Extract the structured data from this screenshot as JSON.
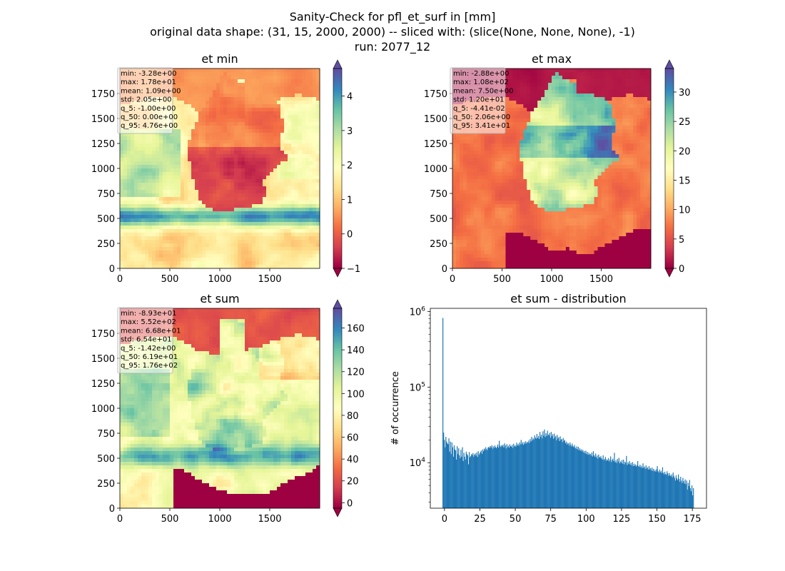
{
  "figure": {
    "title_lines": [
      "Sanity-Check for pfl_et_surf in [mm]",
      "original data shape: (31, 15, 2000, 2000) -- sliced with: (slice(None, None, None), -1)",
      "run: 2077_12"
    ]
  },
  "chart_data": [
    {
      "type": "heatmap",
      "title": "et min",
      "xlim": [
        0,
        2000
      ],
      "ylim": [
        0,
        2000
      ],
      "x_ticks": [
        0,
        500,
        1000,
        1500
      ],
      "y_ticks": [
        0,
        250,
        500,
        750,
        1000,
        1250,
        1500,
        1750
      ],
      "colorbar": {
        "colormap": "Spectral",
        "range": [
          -1,
          4.8
        ],
        "ticks": [
          -1,
          0,
          1,
          2,
          3,
          4
        ],
        "extend": "both"
      },
      "stats": [
        "min: -3.28e+00",
        "max: 1.78e+01",
        "mean: 1.09e+00",
        "std: 2.05e+00",
        "q_5: -1.00e+00",
        "q_50: 0.00e+00",
        "q_95: 4.76e+00"
      ]
    },
    {
      "type": "heatmap",
      "title": "et max",
      "xlim": [
        0,
        2000
      ],
      "ylim": [
        0,
        2000
      ],
      "x_ticks": [
        0,
        500,
        1000,
        1500
      ],
      "y_ticks": [
        0,
        250,
        500,
        750,
        1000,
        1250,
        1500,
        1750
      ],
      "colorbar": {
        "colormap": "Spectral",
        "range": [
          0,
          34
        ],
        "ticks": [
          0,
          5,
          10,
          15,
          20,
          25,
          30
        ],
        "extend": "both"
      },
      "stats": [
        "min: -2.88e+00",
        "max: 1.08e+02",
        "mean: 7.50e+00",
        "std: 1.20e+01",
        "q_5: -4.41e-02",
        "q_50: 2.06e+00",
        "q_95: 3.41e+01"
      ]
    },
    {
      "type": "heatmap",
      "title": "et sum",
      "xlim": [
        0,
        2000
      ],
      "ylim": [
        0,
        2000
      ],
      "x_ticks": [
        0,
        500,
        1000,
        1500
      ],
      "y_ticks": [
        0,
        250,
        500,
        750,
        1000,
        1250,
        1500,
        1750
      ],
      "colorbar": {
        "colormap": "Spectral",
        "range": [
          -5,
          178
        ],
        "ticks": [
          0,
          20,
          40,
          60,
          80,
          100,
          120,
          140,
          160
        ],
        "extend": "both"
      },
      "stats": [
        "min: -8.93e+01",
        "max: 5.52e+02",
        "mean: 6.68e+01",
        "std: 6.54e+01",
        "q_5: -1.42e+00",
        "q_50: 6.19e+01",
        "q_95: 1.76e+02"
      ]
    },
    {
      "type": "bar",
      "title": "et sum - distribution",
      "xlabel": "",
      "ylabel": "# of occurrence",
      "yscale": "log",
      "xlim": [
        -10,
        185
      ],
      "ylim": [
        2500,
        1100000
      ],
      "x_ticks": [
        0,
        25,
        50,
        75,
        100,
        125,
        150,
        175
      ],
      "y_ticks": [
        {
          "value": 10000,
          "base": "10",
          "exp": "4"
        },
        {
          "value": 100000,
          "base": "10",
          "exp": "5"
        },
        {
          "value": 1000000,
          "base": "10",
          "exp": "6"
        }
      ],
      "bar_color": "#1f77b4",
      "bin_range": [
        -1.42,
        176
      ],
      "values": [
        820000,
        25000,
        20000,
        16000,
        22000,
        19000,
        18000,
        17500,
        21000,
        14000,
        19000,
        13000,
        18500,
        16000,
        12000,
        17000,
        15000,
        14500,
        11000,
        16500,
        13000,
        15500,
        12500,
        11500,
        14800,
        12000,
        16000,
        10500,
        13500,
        12000,
        11000,
        14000,
        13000,
        12500,
        9500,
        13800,
        11800,
        12200,
        13000,
        12600,
        13400,
        12000,
        12800,
        13200,
        12400,
        13600,
        11900,
        14200,
        12700,
        13300,
        13900,
        14500,
        13100,
        15000,
        14200,
        15400,
        14800,
        16000,
        15200,
        14600,
        15800,
        16200,
        15600,
        16600,
        15900,
        17000,
        15300,
        16400,
        15700,
        16900,
        16100,
        15500,
        16300,
        17400,
        15800,
        19500,
        16700,
        16100,
        17100,
        16500,
        17300,
        15900,
        18000,
        16900,
        15400,
        17600,
        16000,
        16800,
        15800,
        17500,
        16600,
        16200,
        17200,
        15700,
        17800,
        16400,
        17000,
        16300,
        18400,
        16900,
        17700,
        16800,
        18500,
        17400,
        20000,
        17600,
        18600,
        17200,
        18700,
        17800,
        19200,
        17900,
        18800,
        18400,
        19600,
        18200,
        20500,
        19000,
        22000,
        19700,
        21000,
        20300,
        23000,
        21500,
        20800,
        24000,
        21200,
        22500,
        20600,
        25500,
        22000,
        23500,
        21000,
        26000,
        22800,
        27500,
        21800,
        24500,
        22600,
        26500,
        23600,
        23000,
        24800,
        21400,
        25500,
        22400,
        23800,
        20700,
        24200,
        21600,
        22600,
        19800,
        23300,
        20900,
        21700,
        19300,
        22300,
        20100,
        20600,
        18700,
        21200,
        19400,
        20000,
        18100,
        19000,
        17400,
        18300,
        17900,
        16800,
        18500,
        17200,
        16400,
        17900,
        16600,
        16000,
        17100,
        15800,
        15200,
        16400,
        15000,
        16200,
        14600,
        15500,
        14400,
        15000,
        14100,
        14800,
        13700,
        14200,
        13300,
        14400,
        13000,
        13900,
        12700,
        13500,
        12800,
        13100,
        12400,
        13600,
        12100,
        14200,
        12600,
        12000,
        13200,
        11700,
        12400,
        11300,
        12800,
        11900,
        11600,
        12200,
        11400,
        11000,
        12500,
        10800,
        11200,
        11900,
        10600,
        11100,
        10700,
        11500,
        10400,
        11000,
        12100,
        10200,
        10900,
        11300,
        10500,
        13500,
        10100,
        10700,
        9900,
        11200,
        10300,
        11600,
        9800,
        10400,
        10000,
        10800,
        9700,
        11000,
        9500,
        10300,
        9900,
        12300,
        9300,
        10100,
        9600,
        10500,
        9400,
        9900,
        9200,
        10200,
        9000,
        9700,
        9100,
        9500,
        8900,
        9300,
        10500,
        9000,
        8800,
        9400,
        8700,
        9100,
        8500,
        9800,
        8600,
        8900,
        8300,
        9200,
        8400,
        8700,
        8100,
        9000,
        8200,
        8500,
        7900,
        8600,
        7800,
        8300,
        7700,
        8000,
        7600,
        8200,
        9000,
        7700,
        7400,
        8100,
        7500,
        7800,
        7300,
        8700,
        7400,
        7000,
        7600,
        7100,
        6900,
        7700,
        7200,
        6700,
        7300,
        6800,
        6600,
        7000,
        6400,
        7400,
        6700,
        6300,
        5800,
        6800,
        6200,
        5900,
        7000,
        6100,
        5600,
        6500,
        5800,
        5400,
        6300,
        5700,
        5300,
        6000,
        5200,
        5800,
        4400,
        5400,
        4900,
        5900,
        4600,
        4200,
        5000,
        3700,
        4600
      ]
    }
  ]
}
